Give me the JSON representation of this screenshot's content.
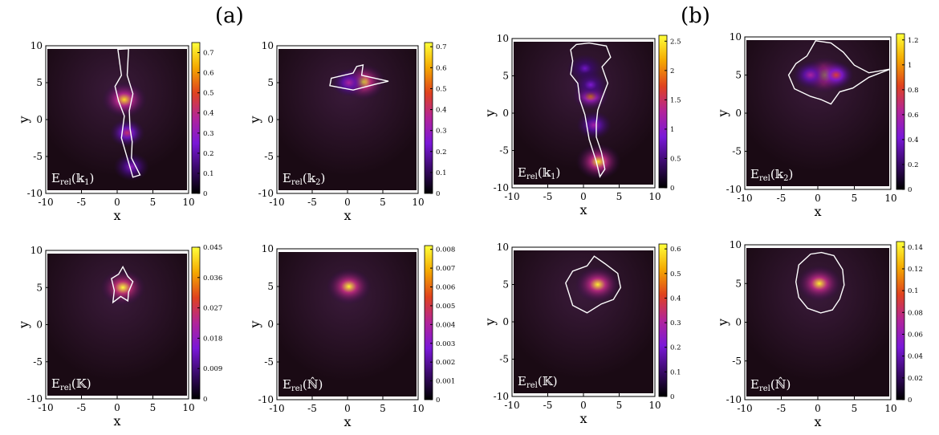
{
  "figure": {
    "panel_labels": [
      "(a)",
      "(b)"
    ]
  },
  "chart_data": [
    {
      "type": "heatmap",
      "group": "(a)",
      "label_main": "E",
      "label_sub": "rel",
      "label_arg": "(𝕜",
      "label_argsub": "1",
      "label_close": ")",
      "xlabel": "x",
      "ylabel": "y",
      "xlim": [
        -10,
        10
      ],
      "ylim": [
        -10,
        10
      ],
      "xticks": [
        "-10",
        "-5",
        "0",
        "5",
        "10"
      ],
      "yticks": [
        "10",
        "5",
        "0",
        "-5",
        "-10"
      ],
      "colorbar": {
        "min": 0,
        "max": 0.75,
        "ticks": [
          "0.7",
          "0.6",
          "0.5",
          "0.4",
          "0.3",
          "0.2",
          "0.1",
          "0"
        ]
      },
      "colormap": [
        "#000000",
        "#3a0a6a",
        "#7a18d8",
        "#b2249a",
        "#e0421e",
        "#f4a800",
        "#ffff3a"
      ],
      "peaks": [
        {
          "x": 1.0,
          "y": 2.7,
          "value": 0.7
        },
        {
          "x": 1.4,
          "y": -1.8,
          "value": 0.42
        },
        {
          "x": 2.0,
          "y": -6.4,
          "value": 0.3
        }
      ],
      "contour_level": "white"
    },
    {
      "type": "heatmap",
      "group": "(a)",
      "label_main": "E",
      "label_sub": "rel",
      "label_arg": "(𝕜",
      "label_argsub": "2",
      "label_close": ")",
      "xlabel": "x",
      "ylabel": "y",
      "xlim": [
        -10,
        10
      ],
      "ylim": [
        -10,
        10
      ],
      "xticks": [
        "-10",
        "-5",
        "0",
        "5",
        "10"
      ],
      "yticks": [
        "10",
        "5",
        "0",
        "-5",
        "-10"
      ],
      "colorbar": {
        "min": 0,
        "max": 0.72,
        "ticks": [
          "0.7",
          "0.6",
          "0.5",
          "0.4",
          "0.3",
          "0.2",
          "0.1",
          "0"
        ]
      },
      "colormap": [
        "#000000",
        "#3a0a6a",
        "#7a18d8",
        "#b2249a",
        "#e0421e",
        "#f4a800",
        "#ffff3a"
      ],
      "peaks": [
        {
          "x": 2.2,
          "y": 5.1,
          "value": 0.7
        },
        {
          "x": 0.2,
          "y": 5.0,
          "value": 0.35
        }
      ],
      "contour_level": "white"
    },
    {
      "type": "heatmap",
      "group": "(b)",
      "label_main": "E",
      "label_sub": "rel",
      "label_arg": "(𝕜",
      "label_argsub": "1",
      "label_close": ")",
      "xlabel": "x",
      "ylabel": "y",
      "xlim": [
        -10,
        10
      ],
      "ylim": [
        -10,
        10
      ],
      "xticks": [
        "-10",
        "-5",
        "0",
        "5",
        "10"
      ],
      "yticks": [
        "10",
        "5",
        "0",
        "-5",
        "-10"
      ],
      "colorbar": {
        "min": 0,
        "max": 2.6,
        "ticks": [
          "2.5",
          "2",
          "1.5",
          "1",
          "0.5",
          "0"
        ]
      },
      "colormap": [
        "#000000",
        "#3a0a6a",
        "#7a18d8",
        "#b2249a",
        "#e0421e",
        "#f4a800",
        "#ffff3a"
      ],
      "peaks": [
        {
          "x": 1.0,
          "y": 2.3,
          "value": 2.0
        },
        {
          "x": 2.1,
          "y": -6.5,
          "value": 2.5
        },
        {
          "x": 1.5,
          "y": -1.6,
          "value": 1.2
        },
        {
          "x": 0.2,
          "y": 6.0,
          "value": 0.8
        },
        {
          "x": 1.0,
          "y": 3.8,
          "value": 0.9
        }
      ],
      "contour_level": "white"
    },
    {
      "type": "heatmap",
      "group": "(b)",
      "label_main": "E",
      "label_sub": "rel",
      "label_arg": "(𝕜",
      "label_argsub": "2",
      "label_close": ")",
      "xlabel": "x",
      "ylabel": "y",
      "xlim": [
        -10,
        10
      ],
      "ylim": [
        -10,
        10
      ],
      "xticks": [
        "-10",
        "-5",
        "0",
        "5",
        "10"
      ],
      "yticks": [
        "10",
        "5",
        "0",
        "-5",
        "-10"
      ],
      "colorbar": {
        "min": 0,
        "max": 1.25,
        "ticks": [
          "1.2",
          "1",
          "0.8",
          "0.6",
          "0.4",
          "0.2",
          "0"
        ]
      },
      "colormap": [
        "#000000",
        "#3a0a6a",
        "#7a18d8",
        "#b2249a",
        "#e0421e",
        "#f4a800",
        "#ffff3a"
      ],
      "peaks": [
        {
          "x": 1.0,
          "y": 5.0,
          "value": 1.2
        },
        {
          "x": 2.5,
          "y": 5.0,
          "value": 0.8
        },
        {
          "x": -1.0,
          "y": 5.0,
          "value": 0.6
        }
      ],
      "contour_level": "white"
    },
    {
      "type": "heatmap",
      "group": "(a)",
      "label_main": "E",
      "label_sub": "rel",
      "label_arg": "(𝕂",
      "label_argsub": "",
      "label_close": ")",
      "xlabel": "x",
      "ylabel": "y",
      "xlim": [
        -10,
        10
      ],
      "ylim": [
        -10,
        10
      ],
      "xticks": [
        "-10",
        "-5",
        "0",
        "5",
        "10"
      ],
      "yticks": [
        "10",
        "5",
        "0",
        "-5",
        "-10"
      ],
      "colorbar": {
        "min": 0,
        "max": 0.045,
        "ticks": [
          "0.045",
          "0.036",
          "0.027",
          "0.018",
          "0.009",
          "0"
        ]
      },
      "colormap": [
        "#000000",
        "#3a0a6a",
        "#7a18d8",
        "#b2249a",
        "#e0421e",
        "#f4a800",
        "#ffff3a"
      ],
      "peaks": [
        {
          "x": 0.8,
          "y": 5.0,
          "value": 0.045
        }
      ],
      "contour_level": "white"
    },
    {
      "type": "heatmap",
      "group": "(a)",
      "label_main": "E",
      "label_sub": "rel",
      "label_arg": "(ℕ̂",
      "label_argsub": "",
      "label_close": ")",
      "xlabel": "x",
      "ylabel": "y",
      "xlim": [
        -10,
        10
      ],
      "ylim": [
        -10,
        10
      ],
      "xticks": [
        "-10",
        "-5",
        "0",
        "5",
        "10"
      ],
      "yticks": [
        "10",
        "5",
        "0",
        "-5",
        "-10"
      ],
      "colorbar": {
        "min": 0,
        "max": 0.0082,
        "ticks": [
          "0.008",
          "0.007",
          "0.006",
          "0.005",
          "0.004",
          "0.003",
          "0.002",
          "0.001",
          "0"
        ]
      },
      "colormap": [
        "#000000",
        "#3a0a6a",
        "#7a18d8",
        "#b2249a",
        "#e0421e",
        "#f4a800",
        "#ffff3a"
      ],
      "peaks": [
        {
          "x": 0.2,
          "y": 5.0,
          "value": 0.008
        }
      ],
      "contour_level": "none"
    },
    {
      "type": "heatmap",
      "group": "(b)",
      "label_main": "E",
      "label_sub": "rel",
      "label_arg": "(𝕂",
      "label_argsub": "",
      "label_close": ")",
      "xlabel": "x",
      "ylabel": "y",
      "xlim": [
        -10,
        10
      ],
      "ylim": [
        -10,
        10
      ],
      "xticks": [
        "-10",
        "-5",
        "0",
        "5",
        "10"
      ],
      "yticks": [
        "10",
        "5",
        "0",
        "-5",
        "-10"
      ],
      "colorbar": {
        "min": 0,
        "max": 0.62,
        "ticks": [
          "0.6",
          "0.5",
          "0.4",
          "0.3",
          "0.2",
          "0.1",
          "0"
        ]
      },
      "colormap": [
        "#000000",
        "#3a0a6a",
        "#7a18d8",
        "#b2249a",
        "#e0421e",
        "#f4a800",
        "#ffff3a"
      ],
      "peaks": [
        {
          "x": 2.0,
          "y": 5.0,
          "value": 0.6
        }
      ],
      "contour_level": "white"
    },
    {
      "type": "heatmap",
      "group": "(b)",
      "label_main": "E",
      "label_sub": "rel",
      "label_arg": "(ℕ̂",
      "label_argsub": "",
      "label_close": ")",
      "xlabel": "x",
      "ylabel": "y",
      "xlim": [
        -10,
        10
      ],
      "ylim": [
        -10,
        10
      ],
      "xticks": [
        "-10",
        "-5",
        "0",
        "5",
        "10"
      ],
      "yticks": [
        "10",
        "5",
        "0",
        "-5",
        "-10"
      ],
      "colorbar": {
        "min": 0,
        "max": 0.145,
        "ticks": [
          "0.14",
          "0.12",
          "0.1",
          "0.08",
          "0.06",
          "0.04",
          "0.02",
          "0"
        ]
      },
      "colormap": [
        "#000000",
        "#3a0a6a",
        "#7a18d8",
        "#b2249a",
        "#e0421e",
        "#f4a800",
        "#ffff3a"
      ],
      "peaks": [
        {
          "x": 0.2,
          "y": 5.0,
          "value": 0.14
        }
      ],
      "contour_level": "white"
    }
  ]
}
